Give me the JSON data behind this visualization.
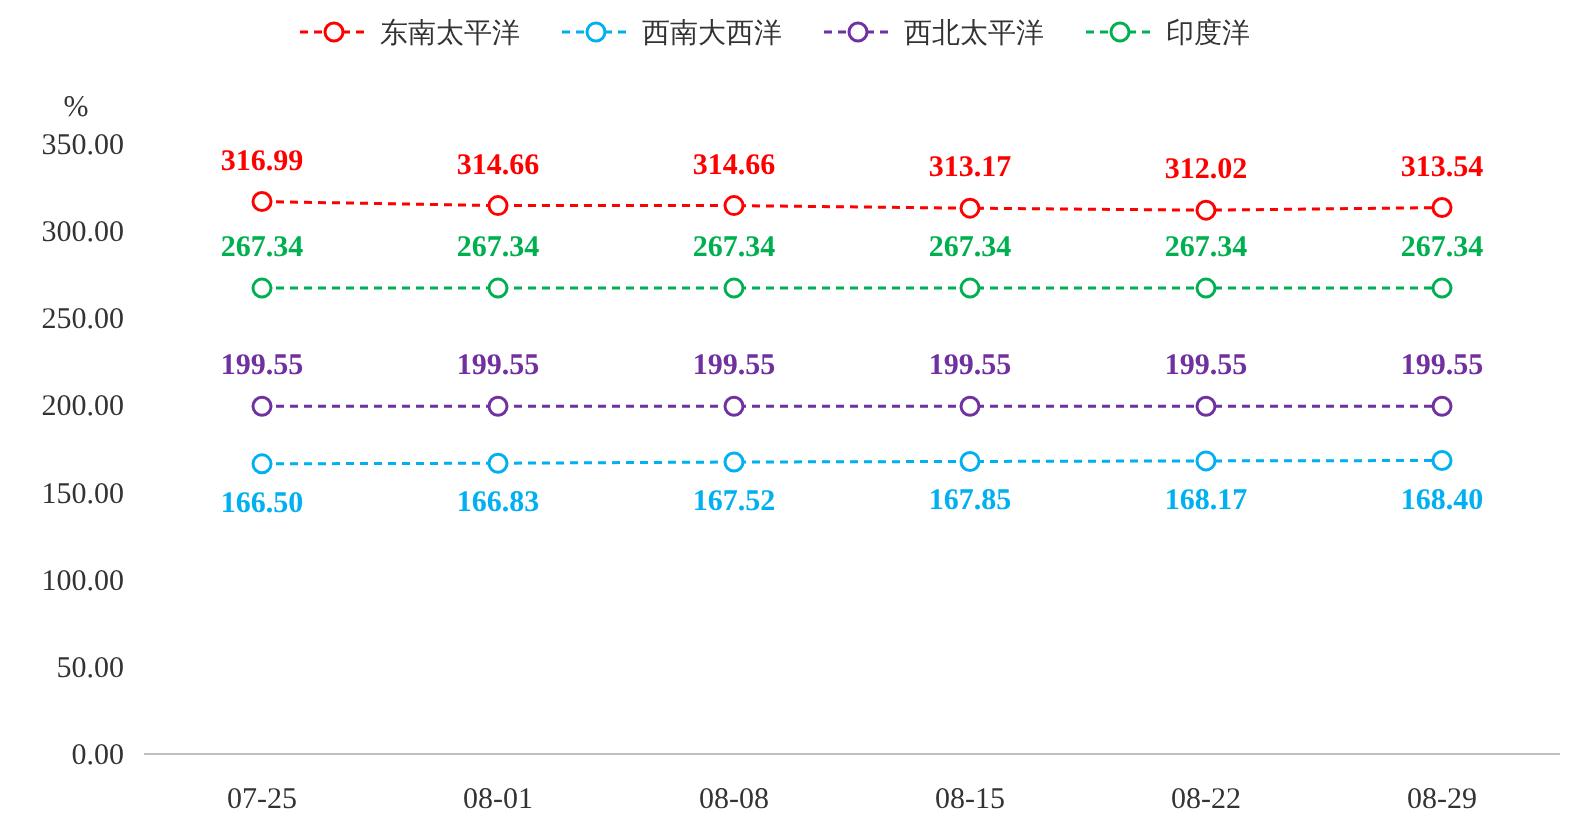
{
  "chart_data": {
    "type": "line",
    "ylabel": "%",
    "categories": [
      "07-25",
      "08-01",
      "08-08",
      "08-15",
      "08-22",
      "08-29"
    ],
    "series": [
      {
        "name": "东南太平洋",
        "color": "#ff0000",
        "values": [
          316.99,
          314.66,
          314.66,
          313.17,
          312.02,
          313.54
        ],
        "value_labels": [
          "316.99",
          "314.66",
          "314.66",
          "313.17",
          "312.02",
          "313.54"
        ]
      },
      {
        "name": "西南大西洋",
        "color": "#00b0f0",
        "values": [
          166.5,
          166.83,
          167.52,
          167.85,
          168.17,
          168.4
        ],
        "value_labels": [
          "166.50",
          "166.83",
          "167.52",
          "167.85",
          "168.17",
          "168.40"
        ]
      },
      {
        "name": "西北太平洋",
        "color": "#7030a0",
        "values": [
          199.55,
          199.55,
          199.55,
          199.55,
          199.55,
          199.55
        ],
        "value_labels": [
          "199.55",
          "199.55",
          "199.55",
          "199.55",
          "199.55",
          "199.55"
        ]
      },
      {
        "name": "印度洋",
        "color": "#00b050",
        "values": [
          267.34,
          267.34,
          267.34,
          267.34,
          267.34,
          267.34
        ],
        "value_labels": [
          "267.34",
          "267.34",
          "267.34",
          "267.34",
          "267.34",
          "267.34"
        ]
      }
    ],
    "ylim": [
      0,
      350
    ],
    "yticks": [
      {
        "value": 0,
        "label": "0.00"
      },
      {
        "value": 50,
        "label": "50.00"
      },
      {
        "value": 100,
        "label": "100.00"
      },
      {
        "value": 150,
        "label": "150.00"
      },
      {
        "value": 200,
        "label": "200.00"
      },
      {
        "value": 250,
        "label": "250.00"
      },
      {
        "value": 300,
        "label": "300.00"
      },
      {
        "value": 350,
        "label": "350.00"
      }
    ],
    "grid": false,
    "legend": "top",
    "marker": "circle",
    "line_style": "dashed"
  }
}
